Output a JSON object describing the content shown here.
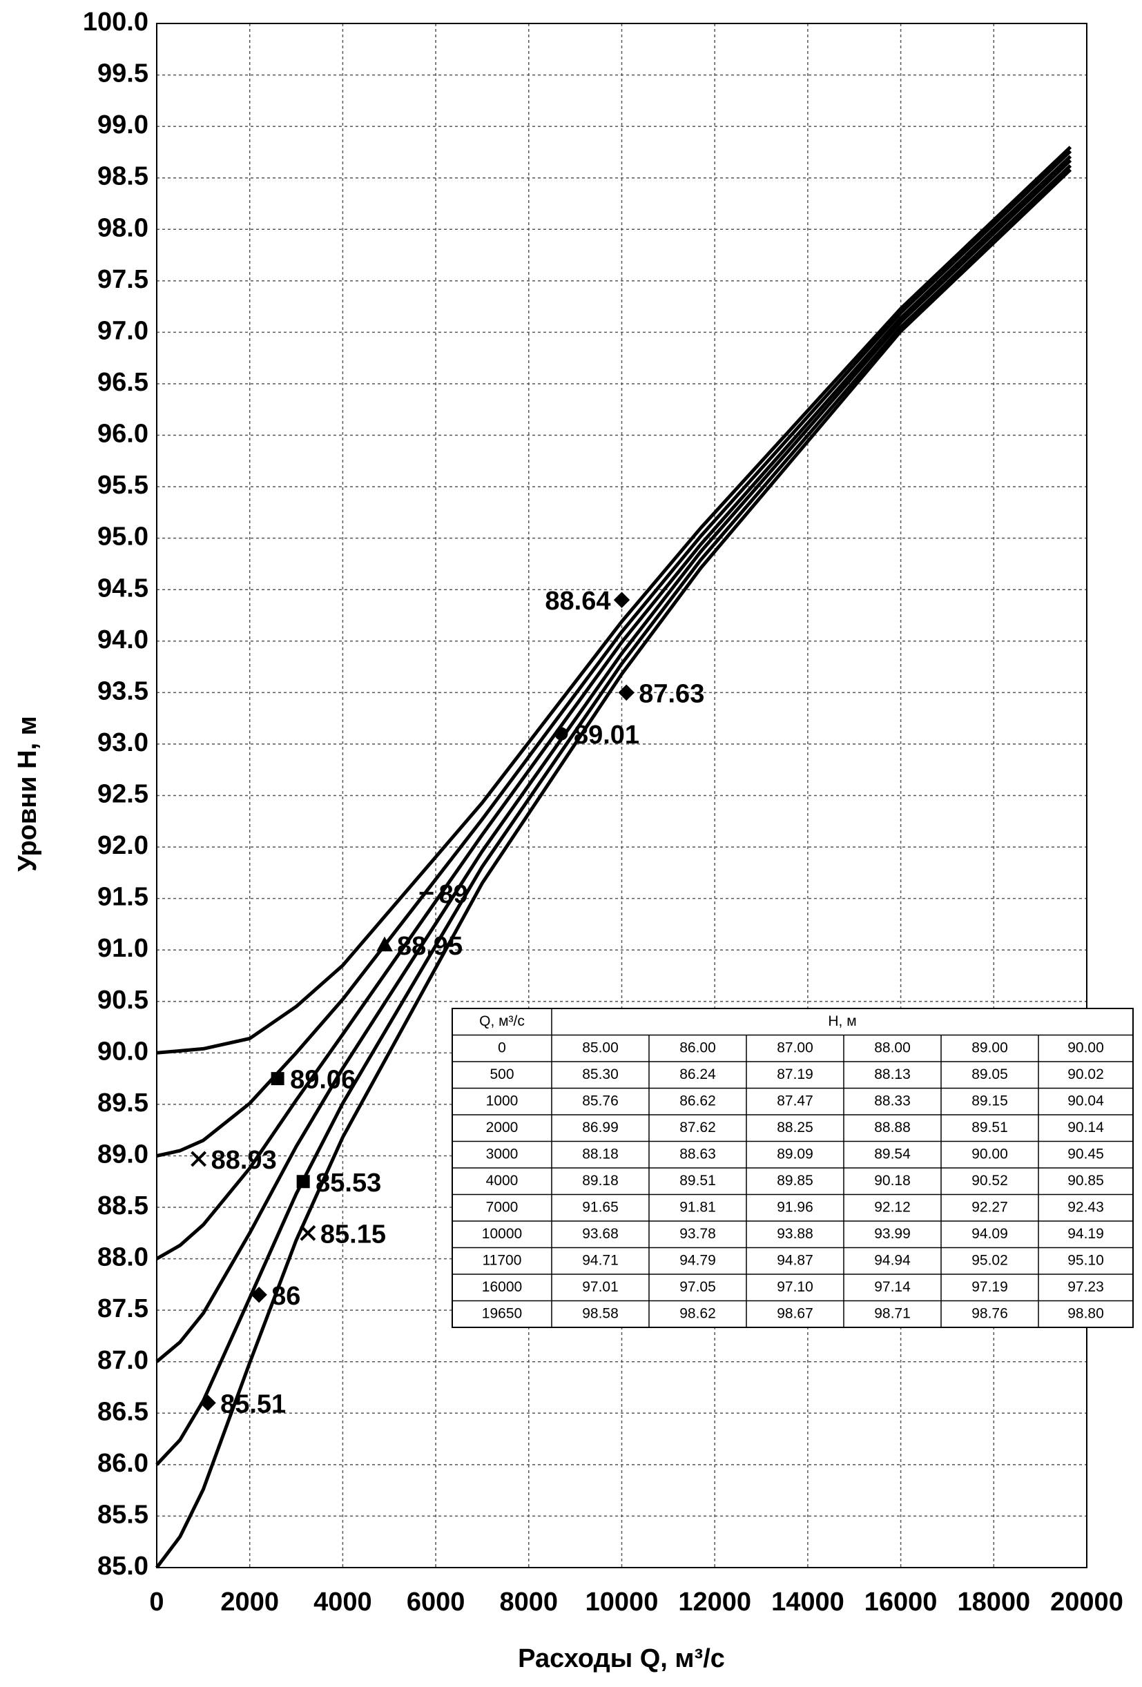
{
  "chart_data": {
    "type": "line",
    "x_label": "Расходы Q, м³/с",
    "y_label": "Уровни Н, м",
    "x": [
      0,
      500,
      1000,
      2000,
      3000,
      4000,
      7000,
      10000,
      11700,
      16000,
      19650
    ],
    "series": [
      {
        "color": "#000000",
        "values": [
          85.0,
          85.3,
          85.76,
          86.99,
          88.18,
          89.18,
          91.65,
          93.68,
          94.71,
          97.01,
          98.58
        ],
        "value_labels": [
          "85.00",
          "85.30",
          "85.76",
          "86.99",
          "88.18",
          "89.18",
          "91.65",
          "93.68",
          "94.71",
          "97.01",
          "98.58"
        ]
      },
      {
        "color": "#000000",
        "values": [
          86.0,
          86.24,
          86.62,
          87.62,
          88.63,
          89.51,
          91.81,
          93.78,
          94.79,
          97.05,
          98.62
        ],
        "value_labels": [
          "86.00",
          "86.24",
          "86.62",
          "87.62",
          "88.63",
          "89.51",
          "91.81",
          "93.78",
          "94.79",
          "97.05",
          "98.62"
        ]
      },
      {
        "color": "#000000",
        "values": [
          87.0,
          87.19,
          87.47,
          88.25,
          89.09,
          89.85,
          91.96,
          93.88,
          94.87,
          97.1,
          98.67
        ],
        "value_labels": [
          "87.00",
          "87.19",
          "87.47",
          "88.25",
          "89.09",
          "89.85",
          "91.96",
          "93.88",
          "94.87",
          "97.10",
          "98.67"
        ]
      },
      {
        "color": "#000000",
        "values": [
          88.0,
          88.13,
          88.33,
          88.88,
          89.54,
          90.18,
          92.12,
          93.99,
          94.94,
          97.14,
          98.71
        ],
        "value_labels": [
          "88.00",
          "88.13",
          "88.33",
          "88.88",
          "89.54",
          "90.18",
          "92.12",
          "93.99",
          "94.94",
          "97.14",
          "98.71"
        ]
      },
      {
        "color": "#000000",
        "values": [
          89.0,
          89.05,
          89.15,
          89.51,
          90.0,
          90.52,
          92.27,
          94.09,
          95.02,
          97.19,
          98.76
        ],
        "value_labels": [
          "89.00",
          "89.05",
          "89.15",
          "89.51",
          "90.00",
          "90.52",
          "92.27",
          "94.09",
          "95.02",
          "97.19",
          "98.76"
        ]
      },
      {
        "color": "#000000",
        "values": [
          90.0,
          90.02,
          90.04,
          90.14,
          90.45,
          90.85,
          92.43,
          94.19,
          95.1,
          97.23,
          98.8
        ],
        "value_labels": [
          "90.00",
          "90.02",
          "90.04",
          "90.14",
          "90.45",
          "90.85",
          "92.43",
          "94.19",
          "95.10",
          "97.23",
          "98.80"
        ]
      }
    ],
    "table_headers": [
      "Q, м³/с",
      "H, м"
    ],
    "observations": [
      {
        "x": 10000,
        "y": 94.4,
        "label": "88.64",
        "marker": "diamond"
      },
      {
        "x": 10100,
        "y": 93.5,
        "label": "87.63",
        "marker": "diamond"
      },
      {
        "x": 8700,
        "y": 93.1,
        "label": "89.01",
        "marker": "circle"
      },
      {
        "x": 5800,
        "y": 91.55,
        "label": "89",
        "marker": "dash"
      },
      {
        "x": 4900,
        "y": 91.05,
        "label": "88.95",
        "marker": "triangle"
      },
      {
        "x": 2600,
        "y": 89.75,
        "label": "89.06",
        "marker": "square"
      },
      {
        "x": 900,
        "y": 88.97,
        "label": "88.93",
        "marker": "cross"
      },
      {
        "x": 3150,
        "y": 88.75,
        "label": "85.53",
        "marker": "square"
      },
      {
        "x": 3250,
        "y": 88.25,
        "label": "85.15",
        "marker": "cross"
      },
      {
        "x": 2200,
        "y": 87.65,
        "label": "86",
        "marker": "diamond"
      },
      {
        "x": 1100,
        "y": 86.6,
        "label": "85.51",
        "marker": "diamond"
      }
    ],
    "xlim": [
      0,
      20000
    ],
    "ylim": [
      85,
      100
    ],
    "xticks": [
      0,
      2000,
      4000,
      6000,
      8000,
      10000,
      12000,
      14000,
      16000,
      18000,
      20000
    ],
    "yticks": [
      {
        "value": 85,
        "label": "85.0"
      },
      85.5,
      {
        "value": 86,
        "label": "86.0"
      },
      86.5,
      {
        "value": 87,
        "label": "87.0"
      },
      87.5,
      {
        "value": 88,
        "label": "88.0"
      },
      88.5,
      {
        "value": 89,
        "label": "89.0"
      },
      89.5,
      {
        "value": 90,
        "label": "90.0"
      },
      90.5,
      {
        "value": 91,
        "label": "91.0"
      },
      91.5,
      {
        "value": 92,
        "label": "92.0"
      },
      92.5,
      {
        "value": 93,
        "label": "93.0"
      },
      93.5,
      {
        "value": 94,
        "label": "94.0"
      },
      94.5,
      {
        "value": 95,
        "label": "95.0"
      },
      95.5,
      {
        "value": 96,
        "label": "96.0"
      },
      96.5,
      {
        "value": 97,
        "label": "97.0"
      },
      97.5,
      {
        "value": 98,
        "label": "98.0"
      },
      98.5,
      {
        "value": 99,
        "label": "99.0"
      },
      99.5,
      {
        "value": 100,
        "label": "100.0"
      }
    ],
    "grid": true
  }
}
